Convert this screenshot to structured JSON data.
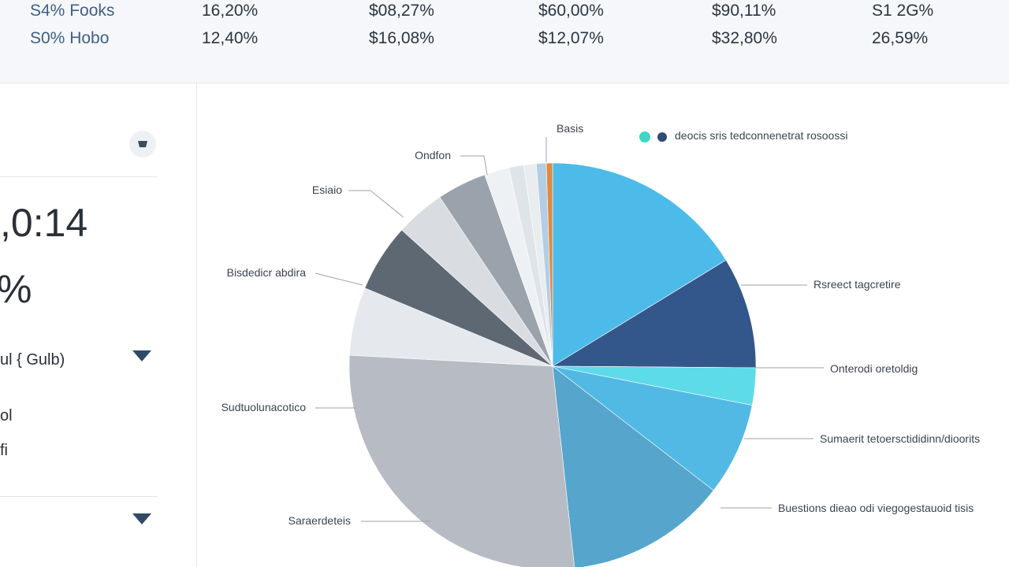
{
  "stats": {
    "row1": [
      "S4% Fooks",
      "16,20%",
      "$08,27%",
      "$60,00%",
      "$90,11%",
      "S1 2G%"
    ],
    "row2": [
      "S0% Hobo",
      "12,40%",
      "$16,08%",
      "$12,07%",
      "$32,80%",
      "26,59%"
    ]
  },
  "left_panel": {
    "big_value": ",0:14",
    "big_percent": "%",
    "dropdown_label": "ul { Gulb)",
    "small_line_1": "ol",
    "small_line_2": "fi"
  },
  "legend": {
    "text": "deocis sris tedconnenetrat rosoossi",
    "colors": [
      "#3fd6c3",
      "#2e4b73"
    ]
  },
  "chart_data": {
    "type": "pie",
    "title": "",
    "slices": [
      {
        "value": 16.5,
        "color": "#4dbbe9"
      },
      {
        "value": 9.0,
        "color": "#33578a"
      },
      {
        "value": 3.0,
        "color": "#5ddbe8"
      },
      {
        "value": 7.5,
        "color": "#52b9e4"
      },
      {
        "value": 13.0,
        "color": "#55a5cc"
      },
      {
        "value": 28.0,
        "color": "#b7bcc4"
      },
      {
        "value": 5.5,
        "color": "#e5e8ec"
      },
      {
        "value": 5.5,
        "color": "#5e6873"
      },
      {
        "value": 4.0,
        "color": "#d9dde2"
      },
      {
        "value": 4.0,
        "color": "#9aa2ab"
      },
      {
        "value": 2.0,
        "color": "#eef1f3"
      },
      {
        "value": 1.2,
        "color": "#dfe4e9"
      },
      {
        "value": 1.0,
        "color": "#e9edf0"
      },
      {
        "value": 0.8,
        "color": "#b3cde6"
      },
      {
        "value": 0.5,
        "color": "#e08a3c"
      }
    ],
    "labels": [
      {
        "text": "Basis"
      },
      {
        "text": "Ondfon"
      },
      {
        "text": "Esiaio"
      },
      {
        "text": "Bisdedicr abdira"
      },
      {
        "text": "Sudtuolunacotico"
      },
      {
        "text": "Saraerdeteis"
      },
      {
        "text": "Rsreect tagcretire"
      },
      {
        "text": "Onterodi oretoldig"
      },
      {
        "text": "Sumaerit tetoersctididinn/dioorits"
      },
      {
        "text": "Buestions dieao odi viegogestauoid tisis"
      }
    ]
  }
}
